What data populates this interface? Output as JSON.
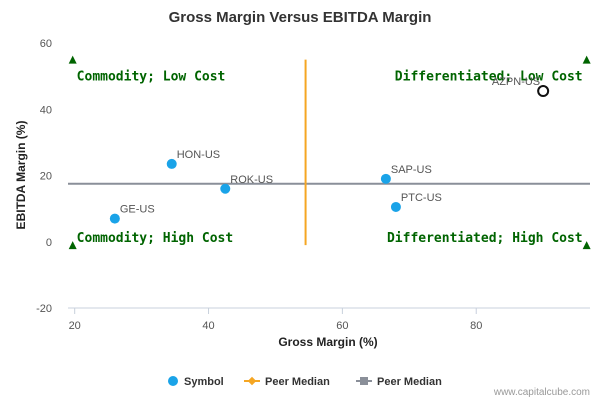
{
  "chart_data": {
    "type": "scatter",
    "title": "Gross Margin Versus EBITDA Margin",
    "xlabel": "Gross Margin (%)",
    "ylabel": "EBITDA Margin (%)",
    "xlim": [
      19,
      97
    ],
    "ylim": [
      -20,
      60
    ],
    "xticks": [
      20,
      40,
      60,
      80
    ],
    "yticks": [
      -20,
      0,
      20,
      40,
      60
    ],
    "grid": false,
    "points": [
      {
        "label": "HON-US",
        "x": 34.5,
        "y": 23.5
      },
      {
        "label": "ROK-US",
        "x": 42.5,
        "y": 16.0
      },
      {
        "label": "GE-US",
        "x": 26.0,
        "y": 7.0
      },
      {
        "label": "SAP-US",
        "x": 66.5,
        "y": 19.0
      },
      {
        "label": "PTC-US",
        "x": 68.0,
        "y": 10.5
      }
    ],
    "highlight": {
      "label": "AZPN-US",
      "x": 90.0,
      "y": 45.5
    },
    "peer_median_x": 54.5,
    "peer_median_x_yrange": [
      -1,
      55
    ],
    "peer_median_y": 17.5,
    "quadrant_labels": [
      {
        "text": "Commodity; Low Cost",
        "corner": "top-left",
        "x": 19.7,
        "y": 55
      },
      {
        "text": "Differentiated; Low Cost",
        "corner": "top-right",
        "x": 96.5,
        "y": 55
      },
      {
        "text": "Commodity; High Cost",
        "corner": "bottom-left",
        "x": 19.7,
        "y": -1
      },
      {
        "text": "Differentiated; High Cost",
        "corner": "bottom-right",
        "x": 96.5,
        "y": -1
      }
    ],
    "legend": {
      "placement": "bottom",
      "items": [
        {
          "name": "Symbol",
          "marker": "circle",
          "color": "#1aa3e8"
        },
        {
          "name": "Peer Median",
          "marker": "diamond-line",
          "color": "#f5a623"
        },
        {
          "name": "Peer Median",
          "marker": "square-line",
          "color": "#8a8f99"
        }
      ]
    },
    "colors": {
      "symbol": "#1aa3e8",
      "median_x": "#f5a623",
      "median_y": "#8a8f99",
      "quadrant": "#006400",
      "highlight_stroke": "#111111"
    },
    "credit": "www.capitalcube.com"
  }
}
